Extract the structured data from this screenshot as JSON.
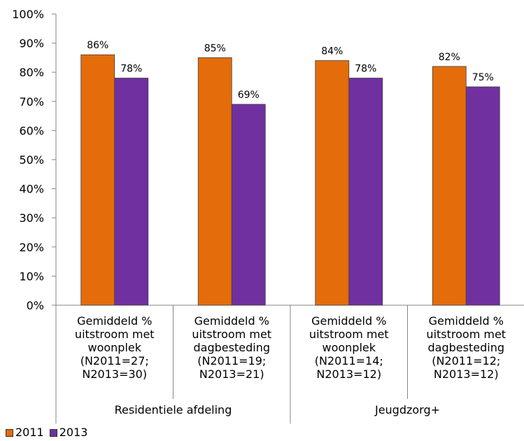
{
  "chart_data": {
    "type": "bar",
    "title": "",
    "xlabel": "",
    "ylabel": "",
    "ylim": [
      0,
      100
    ],
    "y_ticks": [
      "0%",
      "10%",
      "20%",
      "30%",
      "40%",
      "50%",
      "60%",
      "70%",
      "80%",
      "90%",
      "100%"
    ],
    "categories": [
      [
        "Gemiddeld %",
        "uitstroom met",
        "woonplek",
        "(N2011=27;",
        "N2013=30)"
      ],
      [
        "Gemiddeld %",
        "uitstroom met",
        "dagbesteding",
        "(N2011=19;",
        "N2013=21)"
      ],
      [
        "Gemiddeld %",
        "uitstroom met",
        "woonplek",
        "(N2011=14;",
        "N2013=12)"
      ],
      [
        "Gemiddeld %",
        "uitstroom met",
        "dagbesteding",
        "(N2011=12;",
        "N2013=12)"
      ]
    ],
    "groups": [
      {
        "label": "Residentiele afdeling",
        "categories": [
          0,
          1
        ]
      },
      {
        "label": "Jeugdzorg+",
        "categories": [
          2,
          3
        ]
      }
    ],
    "series": [
      {
        "name": "2011",
        "color": "#E46C0A",
        "values": [
          86,
          85,
          84,
          82
        ],
        "labels": [
          "86%",
          "85%",
          "84%",
          "82%"
        ]
      },
      {
        "name": "2013",
        "color": "#7030A0",
        "values": [
          78,
          69,
          78,
          75
        ],
        "labels": [
          "78%",
          "69%",
          "78%",
          "75%"
        ]
      }
    ],
    "grid": false,
    "legend_position": "bottom-left"
  }
}
